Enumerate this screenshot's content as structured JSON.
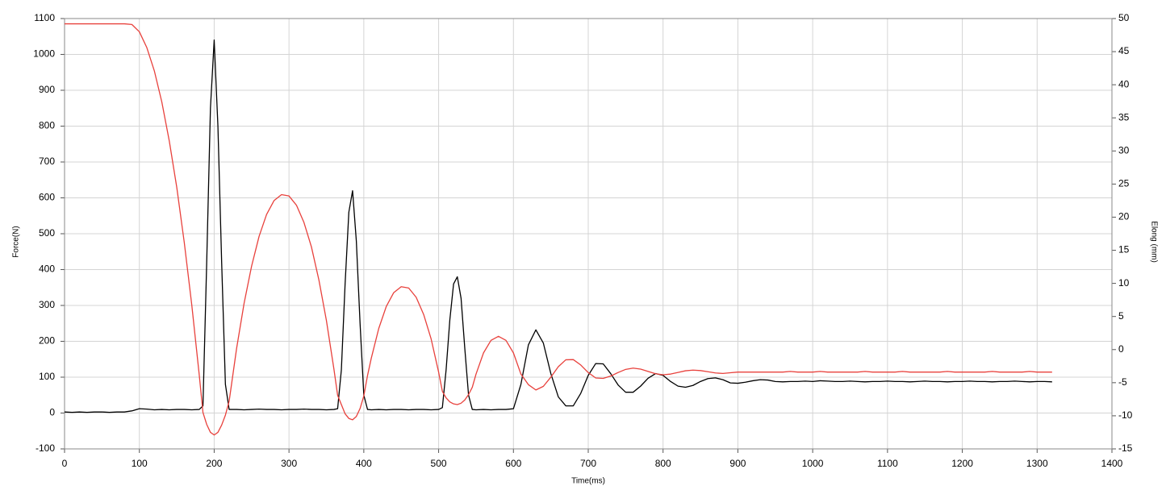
{
  "chart_data": {
    "type": "line",
    "x_label": "Time(ms)",
    "y_label": "Force(N)",
    "y2_label": "Elong (mm)",
    "x": [
      0,
      10,
      20,
      30,
      40,
      50,
      60,
      70,
      80,
      90,
      100,
      110,
      120,
      130,
      140,
      150,
      160,
      170,
      180,
      185,
      190,
      195,
      200,
      205,
      210,
      215,
      220,
      230,
      240,
      250,
      260,
      270,
      280,
      290,
      300,
      310,
      320,
      330,
      340,
      350,
      360,
      365,
      370,
      375,
      380,
      385,
      390,
      395,
      400,
      405,
      410,
      420,
      430,
      440,
      450,
      460,
      470,
      480,
      490,
      500,
      505,
      510,
      515,
      520,
      525,
      530,
      535,
      540,
      545,
      550,
      560,
      570,
      580,
      590,
      600,
      610,
      620,
      630,
      640,
      650,
      660,
      670,
      680,
      690,
      700,
      710,
      720,
      730,
      740,
      750,
      760,
      770,
      780,
      790,
      800,
      810,
      820,
      830,
      840,
      850,
      860,
      870,
      880,
      890,
      900,
      910,
      920,
      930,
      940,
      950,
      960,
      970,
      980,
      990,
      1000,
      1010,
      1020,
      1030,
      1040,
      1050,
      1060,
      1070,
      1080,
      1090,
      1100,
      1110,
      1120,
      1130,
      1140,
      1150,
      1160,
      1170,
      1180,
      1190,
      1200,
      1210,
      1220,
      1230,
      1240,
      1250,
      1260,
      1270,
      1280,
      1290,
      1300,
      1310,
      1320
    ],
    "series": [
      {
        "color": "#000000",
        "axis": "y",
        "values": [
          3,
          2,
          3,
          2,
          3,
          3,
          2,
          3,
          3,
          6,
          12,
          11,
          9,
          10,
          9,
          10,
          10,
          9,
          10,
          20,
          420,
          850,
          1040,
          800,
          420,
          80,
          10,
          10,
          9,
          10,
          11,
          10,
          10,
          9,
          10,
          10,
          11,
          10,
          10,
          9,
          10,
          12,
          120,
          360,
          560,
          620,
          480,
          250,
          50,
          10,
          9,
          10,
          9,
          10,
          10,
          9,
          10,
          10,
          9,
          10,
          15,
          120,
          260,
          360,
          380,
          320,
          180,
          50,
          10,
          9,
          10,
          9,
          10,
          10,
          12,
          80,
          190,
          232,
          195,
          110,
          45,
          20,
          20,
          55,
          105,
          138,
          137,
          110,
          78,
          58,
          58,
          75,
          97,
          110,
          105,
          88,
          75,
          72,
          77,
          88,
          96,
          98,
          93,
          84,
          83,
          86,
          90,
          93,
          92,
          88,
          87,
          88,
          88,
          89,
          88,
          90,
          89,
          88,
          88,
          89,
          88,
          87,
          88,
          88,
          89,
          88,
          88,
          87,
          88,
          89,
          88,
          88,
          87,
          88,
          88,
          89,
          88,
          88,
          87,
          88,
          88,
          89,
          88,
          87,
          88,
          88,
          87
        ]
      },
      {
        "color": "#e8413c",
        "axis": "y2",
        "values": [
          49.2,
          49.2,
          49.2,
          49.2,
          49.2,
          49.2,
          49.2,
          49.2,
          49.2,
          49.1,
          48.0,
          45.6,
          42.1,
          37.4,
          31.5,
          24.5,
          16.2,
          6.8,
          -3.8,
          -9.5,
          -11.3,
          -12.5,
          -12.9,
          -12.5,
          -11.4,
          -9.9,
          -7.8,
          0.2,
          7.0,
          12.6,
          17.1,
          20.4,
          22.5,
          23.4,
          23.2,
          21.8,
          19.2,
          15.5,
          10.5,
          4.4,
          -2.9,
          -6.9,
          -8.3,
          -9.7,
          -10.4,
          -10.6,
          -10.1,
          -8.9,
          -7.0,
          -3.9,
          -1.3,
          3.2,
          6.5,
          8.6,
          9.5,
          9.3,
          7.9,
          5.3,
          1.6,
          -3.4,
          -6.3,
          -7.3,
          -7.9,
          -8.2,
          -8.3,
          -8.1,
          -7.6,
          -6.8,
          -5.7,
          -3.7,
          -0.5,
          1.4,
          2.0,
          1.4,
          -0.5,
          -3.7,
          -5.3,
          -6.1,
          -5.55,
          -4.16,
          -2.58,
          -1.54,
          -1.51,
          -2.33,
          -3.47,
          -4.29,
          -4.35,
          -4.0,
          -3.46,
          -2.99,
          -2.8,
          -2.95,
          -3.3,
          -3.65,
          -3.8,
          -3.7,
          -3.45,
          -3.2,
          -3.1,
          -3.17,
          -3.35,
          -3.53,
          -3.6,
          -3.5,
          -3.4,
          -3.4,
          -3.4,
          -3.4,
          -3.4,
          -3.4,
          -3.4,
          -3.3,
          -3.4,
          -3.4,
          -3.4,
          -3.3,
          -3.4,
          -3.4,
          -3.4,
          -3.4,
          -3.4,
          -3.3,
          -3.4,
          -3.4,
          -3.4,
          -3.4,
          -3.3,
          -3.4,
          -3.4,
          -3.4,
          -3.4,
          -3.4,
          -3.3,
          -3.4,
          -3.4,
          -3.4,
          -3.4,
          -3.4,
          -3.3,
          -3.4,
          -3.4,
          -3.4,
          -3.4,
          -3.3,
          -3.4,
          -3.4,
          -3.4
        ]
      }
    ],
    "xlim": [
      0,
      1400
    ],
    "xticks": [
      0,
      100,
      200,
      300,
      400,
      500,
      600,
      700,
      800,
      900,
      1000,
      1100,
      1200,
      1300,
      1400
    ],
    "ylim": [
      -100,
      1100
    ],
    "yticks": [
      -100,
      0,
      100,
      200,
      300,
      400,
      500,
      600,
      700,
      800,
      900,
      1000,
      1100
    ],
    "y2lim": [
      -15,
      50
    ],
    "y2ticks": [
      -15,
      -10,
      -5,
      0,
      5,
      10,
      15,
      20,
      25,
      30,
      35,
      40,
      45,
      50
    ],
    "grid": true
  }
}
